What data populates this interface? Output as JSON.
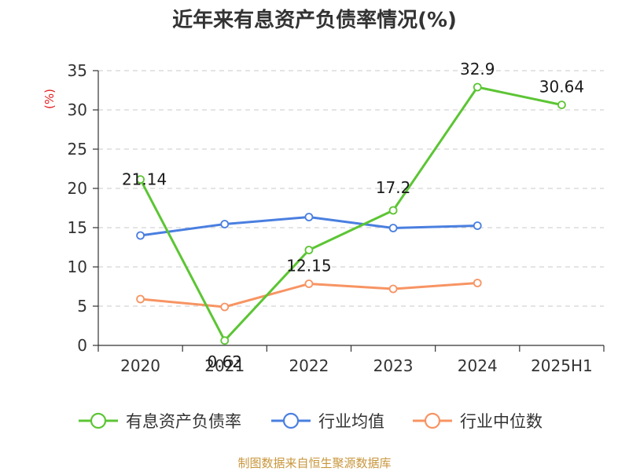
{
  "chart_data": {
    "type": "line",
    "title": "近年来有息资产负债率情况(%)",
    "unit_label": "(%)",
    "categories": [
      "2020",
      "2021",
      "2022",
      "2023",
      "2024",
      "2025H1"
    ],
    "ylim": [
      0,
      35
    ],
    "yticks": [
      "0",
      "5",
      "10",
      "15",
      "20",
      "25",
      "30",
      "35"
    ],
    "grid": true,
    "legend_position": "bottom",
    "series": [
      {
        "name": "有息资产负债率",
        "color": "#5cc534",
        "values": [
          21.14,
          0.62,
          12.15,
          17.2,
          32.9,
          30.64
        ],
        "labels": [
          "21.14",
          "0.62",
          "12.15",
          "17.2",
          "32.9",
          "30.64"
        ]
      },
      {
        "name": "行业均值",
        "color": "#4a7fe0",
        "values": [
          14.0,
          15.45,
          16.35,
          14.95,
          15.25,
          null
        ]
      },
      {
        "name": "行业中位数",
        "color": "#f79463",
        "values": [
          5.9,
          4.9,
          7.85,
          7.2,
          7.95,
          null
        ]
      }
    ]
  },
  "footer": {
    "source": "制图数据来自恒生聚源数据库"
  }
}
